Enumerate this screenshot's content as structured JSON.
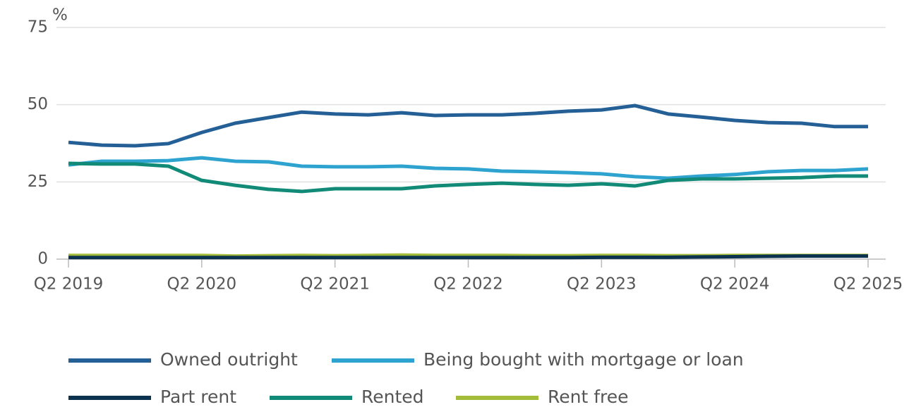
{
  "chart_data": {
    "type": "line",
    "y_label": "%",
    "categories": [
      "Q2 2019",
      null,
      null,
      null,
      "Q2 2020",
      null,
      null,
      null,
      "Q2 2021",
      null,
      null,
      null,
      "Q2 2022",
      null,
      null,
      null,
      "Q2 2023",
      null,
      null,
      null,
      "Q2 2024",
      null,
      null,
      null,
      "Q2 2025"
    ],
    "series": [
      {
        "name": "Owned outright",
        "color": "#245f96",
        "values": [
          37.8,
          36.9,
          36.7,
          37.4,
          41.0,
          44.0,
          45.8,
          47.6,
          47.0,
          46.7,
          47.4,
          46.5,
          46.7,
          46.7,
          47.2,
          47.9,
          48.3,
          49.7,
          47.0,
          46.0,
          44.9,
          44.2,
          44.0,
          42.9,
          42.9
        ]
      },
      {
        "name": "Being bought with mortgage or loan",
        "color": "#2ea3d0",
        "values": [
          30.5,
          31.7,
          31.7,
          31.9,
          32.8,
          31.7,
          31.5,
          30.1,
          29.9,
          29.9,
          30.1,
          29.4,
          29.2,
          28.5,
          28.3,
          28.0,
          27.6,
          26.7,
          26.2,
          26.9,
          27.4,
          28.3,
          28.7,
          28.7,
          29.2
        ]
      },
      {
        "name": "Part rent",
        "color": "#0b3350",
        "values": [
          0.5,
          0.5,
          0.5,
          0.5,
          0.5,
          0.5,
          0.5,
          0.5,
          0.5,
          0.5,
          0.5,
          0.5,
          0.5,
          0.5,
          0.5,
          0.5,
          0.6,
          0.6,
          0.6,
          0.7,
          0.8,
          0.9,
          1.0,
          1.0,
          1.0
        ]
      },
      {
        "name": "Rented",
        "color": "#118a78",
        "values": [
          31.0,
          30.8,
          30.8,
          30.1,
          25.5,
          23.9,
          22.6,
          21.9,
          22.8,
          22.8,
          22.8,
          23.7,
          24.2,
          24.6,
          24.2,
          23.9,
          24.4,
          23.7,
          25.5,
          26.0,
          26.0,
          26.2,
          26.4,
          26.9,
          26.9
        ]
      },
      {
        "name": "Rent free",
        "color": "#a3bd3b",
        "values": [
          1.2,
          1.2,
          1.2,
          1.2,
          1.2,
          1.0,
          1.1,
          1.2,
          1.1,
          1.2,
          1.3,
          1.2,
          1.2,
          1.2,
          1.1,
          1.1,
          1.2,
          1.2,
          1.1,
          1.1,
          1.2,
          1.2,
          1.2,
          1.2,
          1.2
        ]
      }
    ],
    "ylim": [
      0,
      75
    ],
    "yticks": [
      0,
      25,
      50,
      75
    ],
    "grid": true,
    "legend": "bottom"
  }
}
